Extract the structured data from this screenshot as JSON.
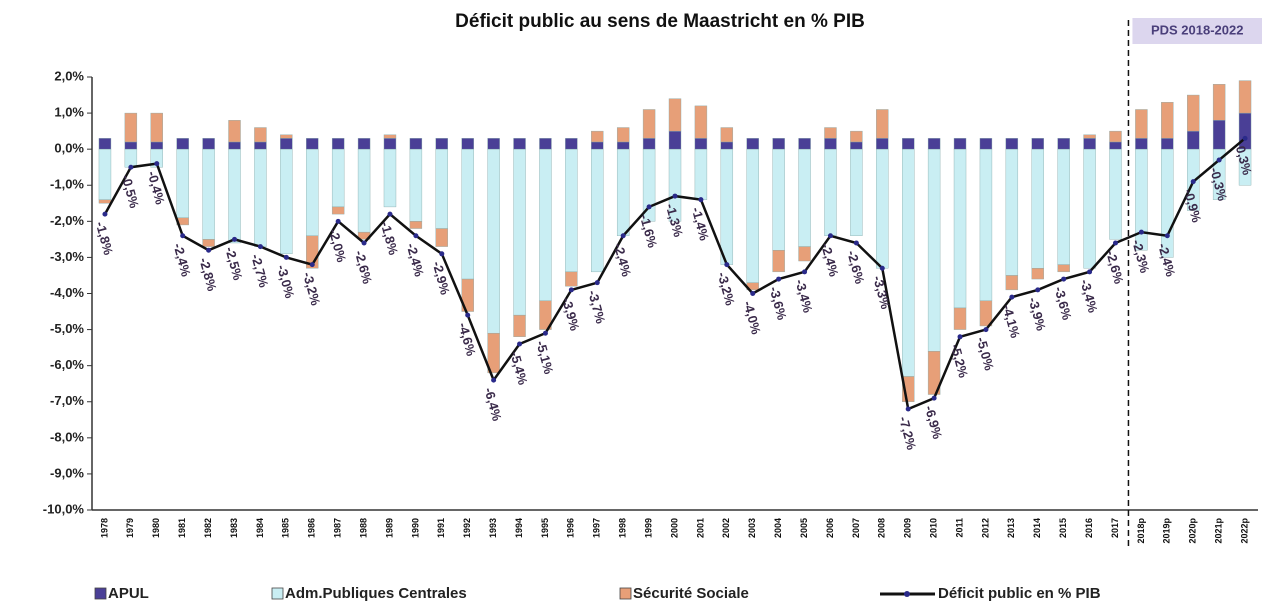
{
  "chart_data": {
    "type": "stacked_bar_line",
    "title": "Déficit public au sens de Maastricht en % PIB",
    "annotation": "PDS 2018-2022",
    "categories": [
      "1978",
      "1979",
      "1980",
      "1981",
      "1982",
      "1983",
      "1984",
      "1985",
      "1986",
      "1987",
      "1988",
      "1989",
      "1990",
      "1991",
      "1992",
      "1993",
      "1994",
      "1995",
      "1996",
      "1997",
      "1998",
      "1999",
      "2000",
      "2001",
      "2002",
      "2003",
      "2004",
      "2005",
      "2006",
      "2007",
      "2008",
      "2009",
      "2010",
      "2011",
      "2012",
      "2013",
      "2014",
      "2015",
      "2016",
      "2017",
      "2018p",
      "2019p",
      "2020p",
      "2021p",
      "2022p"
    ],
    "ylim": [
      -10,
      2
    ],
    "yticks": [
      {
        "value": 2,
        "label": "2,0%"
      },
      {
        "value": 1,
        "label": "1,0%"
      },
      {
        "value": 0,
        "label": "0,0%"
      },
      {
        "value": -1,
        "label": "-1,0%"
      },
      {
        "value": -2,
        "label": "-2,0%"
      },
      {
        "value": -3,
        "label": "-3,0%"
      },
      {
        "value": -4,
        "label": "-4,0%"
      },
      {
        "value": -5,
        "label": "-5,0%"
      },
      {
        "value": -6,
        "label": "-6,0%"
      },
      {
        "value": -7,
        "label": "-7,0%"
      },
      {
        "value": -8,
        "label": "-8,0%"
      },
      {
        "value": -9,
        "label": "-9,0%"
      },
      {
        "value": -10,
        "label": "-10,0%"
      }
    ],
    "series": [
      {
        "name": "APUL",
        "color": "#4a3f96",
        "values": [
          0.3,
          0.2,
          0.2,
          0.3,
          0.3,
          0.2,
          0.2,
          0.3,
          0.3,
          0.3,
          0.3,
          0.3,
          0.3,
          0.3,
          0.3,
          0.3,
          0.3,
          0.3,
          0.3,
          0.2,
          0.2,
          0.3,
          0.5,
          0.3,
          0.2,
          0.3,
          0.3,
          0.3,
          0.3,
          0.2,
          0.3,
          0.3,
          0.3,
          0.3,
          0.3,
          0.3,
          0.3,
          0.3,
          0.3,
          0.2,
          0.3,
          0.3,
          0.5,
          0.8,
          1.0
        ]
      },
      {
        "name": "Adm.Publiques Centrales",
        "color": "#c9eef3",
        "values": [
          -1.4,
          -0.5,
          -0.5,
          -1.9,
          -2.5,
          -2.6,
          -2.7,
          -2.9,
          -2.4,
          -1.6,
          -2.3,
          -1.6,
          -2.0,
          -2.2,
          -3.6,
          -5.1,
          -4.6,
          -4.2,
          -3.4,
          -3.4,
          -2.4,
          -2.0,
          -2.0,
          -1.4,
          -3.2,
          -3.7,
          -2.8,
          -2.7,
          -2.4,
          -2.4,
          -3.3,
          -6.3,
          -5.6,
          -4.4,
          -4.2,
          -3.5,
          -3.3,
          -3.2,
          -3.3,
          -2.5,
          -2.8,
          -3.0,
          -1.7,
          -1.4,
          -1.0
        ]
      },
      {
        "name": "Sécurité Sociale",
        "color": "#e79f78",
        "values": [
          -0.1,
          0.8,
          0.8,
          -0.2,
          -0.2,
          0.6,
          0.4,
          0.1,
          -0.9,
          -0.2,
          -0.2,
          0.1,
          -0.2,
          -0.5,
          -0.9,
          -1.1,
          -0.6,
          -0.8,
          -0.4,
          0.3,
          0.4,
          0.8,
          0.9,
          0.9,
          0.4,
          -0.2,
          -0.6,
          -0.4,
          0.3,
          0.3,
          0.8,
          -0.7,
          -1.2,
          -0.6,
          -0.7,
          -0.4,
          -0.3,
          -0.2,
          0.1,
          0.3,
          0.8,
          1.0,
          1.0,
          1.0,
          0.9
        ]
      },
      {
        "name": "Déficit public en % PIB",
        "color": "#111111",
        "type": "line",
        "values": [
          -1.8,
          -0.5,
          -0.4,
          -2.4,
          -2.8,
          -2.5,
          -2.7,
          -3.0,
          -3.2,
          -2.0,
          -2.6,
          -1.8,
          -2.4,
          -2.9,
          -4.6,
          -6.4,
          -5.4,
          -5.1,
          -3.9,
          -3.7,
          -2.4,
          -1.6,
          -1.3,
          -1.4,
          -3.2,
          -4.0,
          -3.6,
          -3.4,
          -2.4,
          -2.6,
          -3.3,
          -7.2,
          -6.9,
          -5.2,
          -5.0,
          -4.1,
          -3.9,
          -3.6,
          -3.4,
          -2.6,
          -2.3,
          -2.4,
          -0.9,
          -0.3,
          0.3
        ],
        "value_labels": [
          "-1,8%",
          "-0,5%",
          "-0,4%",
          "-2,4%",
          "-2,8%",
          "-2,5%",
          "-2,7%",
          "-3,0%",
          "-3,2%",
          "-2,0%",
          "-2,6%",
          "-1,8%",
          "-2,4%",
          "-2,9%",
          "-4,6%",
          "-6,4%",
          "-5,4%",
          "-5,1%",
          "-3,9%",
          "-3,7%",
          "-2,4%",
          "-1,6%",
          "-1,3%",
          "-1,4%",
          "-3,2%",
          "-4,0%",
          "-3,6%",
          "-3,4%",
          "-2,4%",
          "-2,6%",
          "-3,3%",
          "-7,2%",
          "-6,9%",
          "-5,2%",
          "-5,0%",
          "-4,1%",
          "-3,9%",
          "-3,6%",
          "-3,4%",
          "-2,6%",
          "-2,3%",
          "-2,4%",
          "-0,9%",
          "-0,3%",
          "0,3%"
        ]
      }
    ]
  }
}
